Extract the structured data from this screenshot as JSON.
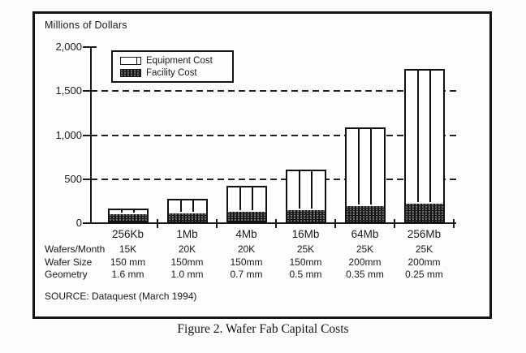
{
  "figure": {
    "y_axis_title": "Millions of Dollars",
    "caption": "Figure 2. Wafer Fab Capital Costs",
    "source": "SOURCE: Dataquest (March 1994)",
    "legend": [
      {
        "label": "Equipment Cost"
      },
      {
        "label": "Facility Cost"
      }
    ],
    "colors": {
      "ink": "#1a1a1a",
      "paper": "#fcfcfc",
      "facility_fill": "#141414",
      "equipment_fill": "#ffffff"
    }
  },
  "chart_data": {
    "type": "bar",
    "stacked": true,
    "title": "Figure 2. Wafer Fab Capital Costs",
    "ylabel": "Millions of Dollars",
    "units": "Millions of Dollars",
    "ylim": [
      0,
      2000
    ],
    "yticks": [
      {
        "value": 0,
        "label": "0"
      },
      {
        "value": 500,
        "label": "500"
      },
      {
        "value": 1000,
        "label": "1,000"
      },
      {
        "value": 1500,
        "label": "1,500"
      },
      {
        "value": 2000,
        "label": "2,000"
      }
    ],
    "gridlines": {
      "style": "dashed",
      "values": [
        500,
        1000,
        1500
      ]
    },
    "legend_position": "inside-top-left",
    "categories": [
      "256Kb",
      "1Mb",
      "4Mb",
      "16Mb",
      "64Mb",
      "256Mb"
    ],
    "series": [
      {
        "name": "Facility Cost",
        "pattern": "solid-black-speckled",
        "values": [
          100,
          110,
          130,
          150,
          190,
          220
        ]
      },
      {
        "name": "Equipment Cost",
        "pattern": "white-vertical-stripes",
        "values": [
          70,
          170,
          290,
          460,
          900,
          1530
        ]
      }
    ],
    "stack_totals": [
      170,
      280,
      420,
      610,
      1090,
      1750
    ],
    "source": "SOURCE: Dataquest (March 1994)"
  },
  "spec_table": {
    "rows": [
      {
        "label": "Wafers/Month",
        "values": [
          "15K",
          "20K",
          "20K",
          "25K",
          "25K",
          "25K"
        ]
      },
      {
        "label": "Wafer Size",
        "values": [
          "150 mm",
          "150mm",
          "150mm",
          "150mm",
          "200mm",
          "200mm"
        ]
      },
      {
        "label": "Geometry",
        "values": [
          "1.6 mm",
          "1.0 mm",
          "0.7 mm",
          "0.5 mm",
          "0.35 mm",
          "0.25 mm"
        ]
      }
    ]
  }
}
